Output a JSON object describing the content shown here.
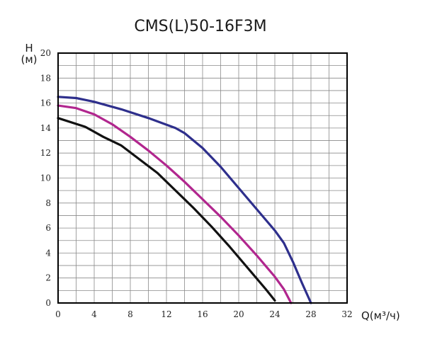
{
  "chart_data": {
    "type": "line",
    "title": "CMS(L)50-16F3M",
    "ylabel_top": "H",
    "ylabel_bottom": "(м)",
    "xlabel": "Q(м³/ч)",
    "xlim": [
      0,
      32
    ],
    "ylim": [
      0,
      20
    ],
    "xticks": [
      0,
      4,
      8,
      12,
      16,
      20,
      24,
      28,
      32
    ],
    "yticks": [
      0,
      2,
      4,
      6,
      8,
      10,
      12,
      14,
      16,
      18,
      20
    ],
    "x_minor_step": 2,
    "y_minor_step": 1,
    "grid": true,
    "series": [
      {
        "color": "#2e2f8c",
        "points": [
          [
            0,
            16.5
          ],
          [
            2,
            16.4
          ],
          [
            4,
            16.1
          ],
          [
            7,
            15.5
          ],
          [
            10,
            14.8
          ],
          [
            13,
            14.0
          ],
          [
            14,
            13.6
          ],
          [
            16,
            12.4
          ],
          [
            18,
            10.9
          ],
          [
            20,
            9.2
          ],
          [
            22,
            7.5
          ],
          [
            24,
            5.8
          ],
          [
            25,
            4.8
          ],
          [
            26,
            3.3
          ],
          [
            27,
            1.6
          ],
          [
            28,
            0
          ]
        ]
      },
      {
        "color": "#b1268e",
        "points": [
          [
            0,
            15.8
          ],
          [
            2,
            15.6
          ],
          [
            4,
            15.1
          ],
          [
            6,
            14.3
          ],
          [
            8,
            13.3
          ],
          [
            10,
            12.2
          ],
          [
            12,
            11.0
          ],
          [
            14,
            9.7
          ],
          [
            16,
            8.3
          ],
          [
            18,
            6.9
          ],
          [
            20,
            5.4
          ],
          [
            22,
            3.8
          ],
          [
            24,
            2.1
          ],
          [
            25,
            1.1
          ],
          [
            25.8,
            0
          ]
        ]
      },
      {
        "color": "#111111",
        "points": [
          [
            0,
            14.8
          ],
          [
            3,
            14.1
          ],
          [
            5,
            13.3
          ],
          [
            7,
            12.6
          ],
          [
            9,
            11.5
          ],
          [
            11,
            10.4
          ],
          [
            13,
            9.0
          ],
          [
            15,
            7.6
          ],
          [
            17,
            6.1
          ],
          [
            19,
            4.5
          ],
          [
            21,
            2.8
          ],
          [
            23,
            1.1
          ],
          [
            24,
            0.2
          ]
        ]
      }
    ]
  }
}
